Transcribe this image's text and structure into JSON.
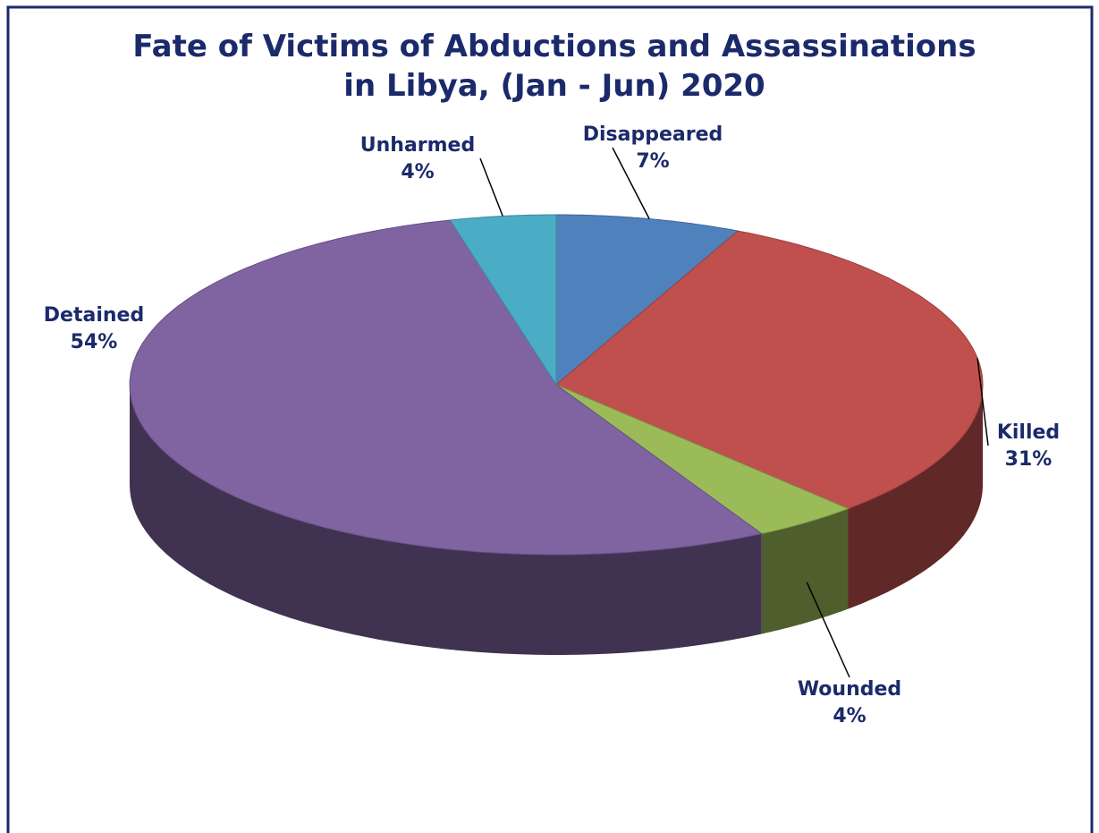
{
  "chart_data": {
    "type": "pie3d",
    "title": "Fate of Victims of Abductions and Assassinations in Libya, (Jan - Jun) 2020",
    "categories": [
      "Disappeared",
      "Killed",
      "Wounded",
      "Detained",
      "Unharmed"
    ],
    "values": [
      7,
      31,
      4,
      54,
      4
    ],
    "value_labels": [
      "7%",
      "31%",
      "4%",
      "54%",
      "4%"
    ],
    "colors": [
      "#4f81bd",
      "#c0504d",
      "#9bbb59",
      "#8064a2",
      "#4bacc6"
    ]
  }
}
